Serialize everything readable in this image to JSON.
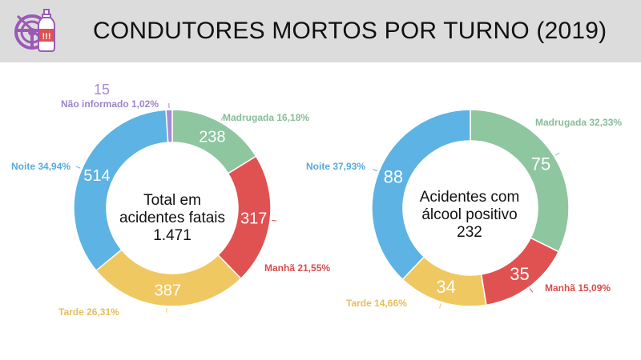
{
  "header": {
    "title": "CONDUTORES MORTOS POR TURNO (2019)",
    "icon": "steering-wheel-bottle-icon",
    "icon_color": "#9b59b6"
  },
  "chart_data": [
    {
      "type": "pie",
      "variant": "donut",
      "center_label": [
        "Total em",
        "acidentes fatais",
        "1.471"
      ],
      "total": 1471,
      "slices": [
        {
          "category": "Madrugada",
          "value": 238,
          "label": "Madrugada 16,18%",
          "color": "#8ec6a0"
        },
        {
          "category": "Manhã",
          "value": 317,
          "label": "Manhã 21,55%",
          "color": "#e05252"
        },
        {
          "category": "Tarde",
          "value": 387,
          "label": "Tarde 26,31%",
          "color": "#f0c862"
        },
        {
          "category": "Noite",
          "value": 514,
          "label": "Noite 34,94%",
          "color": "#5db3e3"
        },
        {
          "category": "Não informado",
          "value": 15,
          "label": "Não informado 1,02%",
          "color": "#a68bd0"
        }
      ]
    },
    {
      "type": "pie",
      "variant": "donut",
      "center_label": [
        "Acidentes com",
        "álcool positivo",
        "232"
      ],
      "total": 232,
      "slices": [
        {
          "category": "Madrugada",
          "value": 75,
          "label": "Madrugada 32,33%",
          "color": "#8ec6a0"
        },
        {
          "category": "Manhã",
          "value": 35,
          "label": "Manhã 15,09%",
          "color": "#e05252"
        },
        {
          "category": "Tarde",
          "value": 34,
          "label": "Tarde 14,66%",
          "color": "#f0c862"
        },
        {
          "category": "Noite",
          "value": 88,
          "label": "Noite 37,93%",
          "color": "#5db3e3"
        }
      ]
    }
  ]
}
